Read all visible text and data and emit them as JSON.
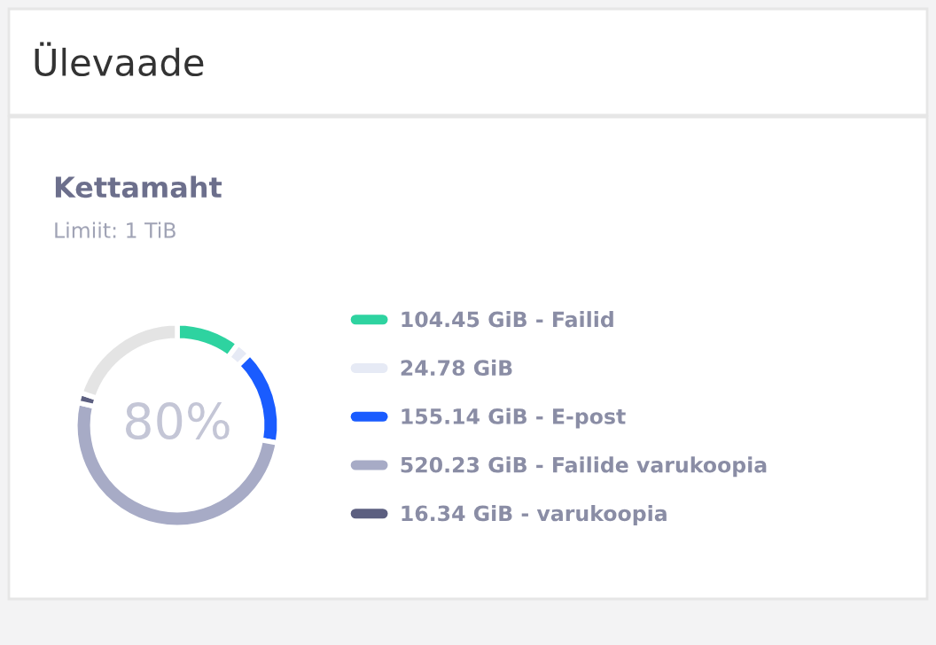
{
  "chart_data": {
    "type": "donut",
    "title": "Kettamaht",
    "subtitle": "Limiit: 1 TiB",
    "categories": [
      "104.45 GiB - Failid",
      "24.78 GiB",
      "155.14 GiB - E-post",
      "520.23 GiB - Failide varukoopia",
      "16.34 GiB - varukoopia",
      null
    ],
    "values": [
      104.45,
      24.78,
      155.14,
      520.23,
      16.34,
      203.06
    ],
    "colors": [
      "#2ed3a0",
      "#e6eaf5",
      "#1a5cff",
      "#a7abc6",
      "#5c5f80",
      "#e4e4e4"
    ],
    "annotations": [
      "Ülevaade",
      "80%"
    ],
    "legend": "right"
  }
}
